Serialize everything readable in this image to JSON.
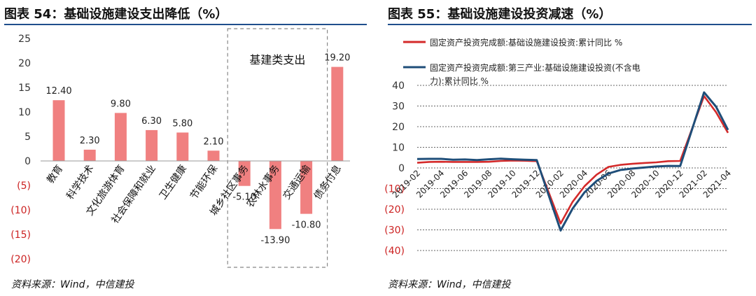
{
  "left": {
    "title": "图表  54：基础设施建设支出降低（%）",
    "source": "资料来源：Wind，中信建投",
    "chart_data": {
      "type": "bar",
      "categories": [
        "教育",
        "科学技术",
        "文化旅游体育",
        "社会保障和就业",
        "卫生健康",
        "节能环保",
        "城乡社区事务",
        "农林水事务",
        "交通运输",
        "债务付息"
      ],
      "values": [
        12.4,
        2.3,
        9.8,
        6.3,
        5.8,
        2.1,
        -5.1,
        -13.9,
        -10.8,
        19.2
      ],
      "value_labels": [
        "12.40",
        "2.30",
        "9.80",
        "6.30",
        "5.80",
        "2.10",
        "-5.10",
        "-13.90",
        "-10.80",
        "19.20"
      ],
      "ylim": [
        -20,
        25
      ],
      "yticks": [
        25,
        20,
        15,
        10,
        5,
        0,
        -5,
        -10,
        -15,
        -20
      ],
      "ytick_labels": [
        "25",
        "20",
        "15",
        "10",
        "5",
        "0",
        "(5)",
        "(10)",
        "(15)",
        "(20)"
      ],
      "bar_color": "#f08080",
      "negative_tick_color": "#cc2222",
      "annotation": "基建类支出",
      "grid": false
    }
  },
  "right": {
    "title": "图表  55：基础设施建设投资减速（%）",
    "source": "资料来源：Wind，中信建投",
    "chart_data": {
      "type": "line",
      "x": [
        "2019-02",
        "2019-03",
        "2019-04",
        "2019-05",
        "2019-06",
        "2019-07",
        "2019-08",
        "2019-09",
        "2019-10",
        "2019-11",
        "2019-12",
        "2020-01",
        "2020-02",
        "2020-03",
        "2020-04",
        "2020-05",
        "2020-06",
        "2020-07",
        "2020-08",
        "2020-09",
        "2020-10",
        "2020-11",
        "2020-12",
        "2021-01",
        "2021-02",
        "2021-03",
        "2021-04"
      ],
      "xtick_labels": [
        "2019-02",
        "2019-04",
        "2019-06",
        "2019-08",
        "2019-10",
        "2019-12",
        "2020-02",
        "2020-04",
        "2020-06",
        "2020-08",
        "2020-10",
        "2020-12",
        "2021-02",
        "2021-04"
      ],
      "series": [
        {
          "name": "固定资产投资完成额:基础设施建设投资:累计同比  %",
          "color": "#d42a2a",
          "values": [
            2.5,
            2.9,
            3.0,
            2.9,
            2.9,
            2.9,
            3.0,
            3.4,
            3.6,
            3.5,
            3.3,
            null,
            -26.9,
            -16.4,
            -8.8,
            -3.3,
            0.5,
            1.5,
            2.0,
            2.4,
            2.7,
            3.3,
            3.4,
            null,
            34.8,
            27.0,
            17.0
          ]
        },
        {
          "name": "固定资产投资完成额:第三产业:基础设施建设投资(不含电力):累计同比  %",
          "color": "#1f4e79",
          "values": [
            4.3,
            4.4,
            4.4,
            4.0,
            4.1,
            3.8,
            4.2,
            4.5,
            4.2,
            4.0,
            3.8,
            null,
            -30.3,
            -19.7,
            -11.8,
            -6.3,
            -2.7,
            -1.0,
            -0.3,
            0.2,
            0.7,
            1.0,
            0.9,
            null,
            36.6,
            29.7,
            18.4
          ]
        }
      ],
      "ylim": [
        -40,
        40
      ],
      "yticks": [
        40,
        30,
        20,
        10,
        0,
        -10,
        -20,
        -30,
        -40
      ],
      "ytick_labels": [
        "40",
        "30",
        "20",
        "10",
        "0",
        "(10)",
        "(20)",
        "(30)",
        "(40)"
      ],
      "negative_tick_color": "#cc2222",
      "grid": true,
      "legend_position": "top"
    }
  },
  "rule_color": "#1f4e8c"
}
